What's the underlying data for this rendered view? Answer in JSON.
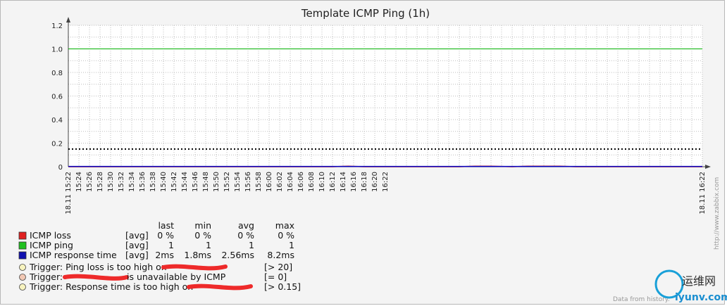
{
  "chart_data": {
    "type": "line",
    "title": "Template ICMP Ping (1h)",
    "ylim": [
      0,
      1.2
    ],
    "y_ticks": [
      "0",
      "0.2",
      "0.4",
      "0.6",
      "0.8",
      "1.0",
      "1.2"
    ],
    "x_start_label": "18.11 15:22",
    "x_end_label": "18.11 16:22",
    "x_ticks": [
      "15:24",
      "15:26",
      "15:28",
      "15:30",
      "15:32",
      "15:34",
      "15:36",
      "15:38",
      "15:40",
      "15:42",
      "15:44",
      "15:46",
      "15:48",
      "15:50",
      "15:52",
      "15:54",
      "15:56",
      "15:58",
      "16:00",
      "16:02",
      "16:04",
      "16:06",
      "16:08",
      "16:10",
      "16:12",
      "16:14",
      "16:16",
      "16:18",
      "16:20",
      "16:22"
    ],
    "highlight_tick": "16:00",
    "grid": true,
    "series": [
      {
        "name": "ICMP loss",
        "color": "#d42020",
        "x_minutes": [
          0,
          50,
          53,
          56,
          74,
          77,
          80,
          84,
          87,
          90,
          93,
          96,
          120
        ],
        "values": [
          0,
          0,
          0.004,
          0,
          0,
          0.004,
          0.004,
          0,
          0.004,
          0.004,
          0.004,
          0,
          0
        ]
      },
      {
        "name": "ICMP ping",
        "color": "#00b000",
        "x_minutes": [
          0,
          120
        ],
        "values": [
          1,
          1
        ]
      },
      {
        "name": "ICMP response time",
        "color": "#0000c0",
        "x_minutes": [
          0,
          120
        ],
        "values": [
          0.0026,
          0.0026
        ]
      }
    ],
    "trigger_value": 0.15
  },
  "legend": {
    "headers": [
      "last",
      "min",
      "avg",
      "max"
    ],
    "rows": [
      {
        "name": "ICMP loss",
        "func": "[avg]",
        "last": "0 %",
        "min": "0 %",
        "avg": "0 %",
        "max": "0 %",
        "color": "#e02020"
      },
      {
        "name": "ICMP ping",
        "func": "[avg]",
        "last": "1",
        "min": "1",
        "avg": "1",
        "max": "1",
        "color": "#20c020"
      },
      {
        "name": "ICMP response time",
        "func": "[avg]",
        "last": "2ms",
        "min": "1.8ms",
        "avg": "2.56ms",
        "max": "8.2ms",
        "color": "#1010b0"
      }
    ]
  },
  "triggers": [
    {
      "text_before": "Trigger: Ping loss is too high on ",
      "text_after": "",
      "cond": "[> 20]",
      "dot_color": "#f7f3bf"
    },
    {
      "text_before": "Trigger: ",
      "text_after": " is unavailable by ICMP",
      "cond": "[= 0]",
      "dot_color": "#f2c8b4"
    },
    {
      "text_before": "Trigger: Response time is too high on ",
      "text_after": "",
      "cond": "[> 0.15]",
      "dot_color": "#f7f3bf"
    }
  ],
  "watermark": "http://www.zabbix.com",
  "footer_text": "Data from history.",
  "site_logo": "运维网",
  "site_url": "iyunv.com",
  "redaction_color": "#ee2a2a"
}
